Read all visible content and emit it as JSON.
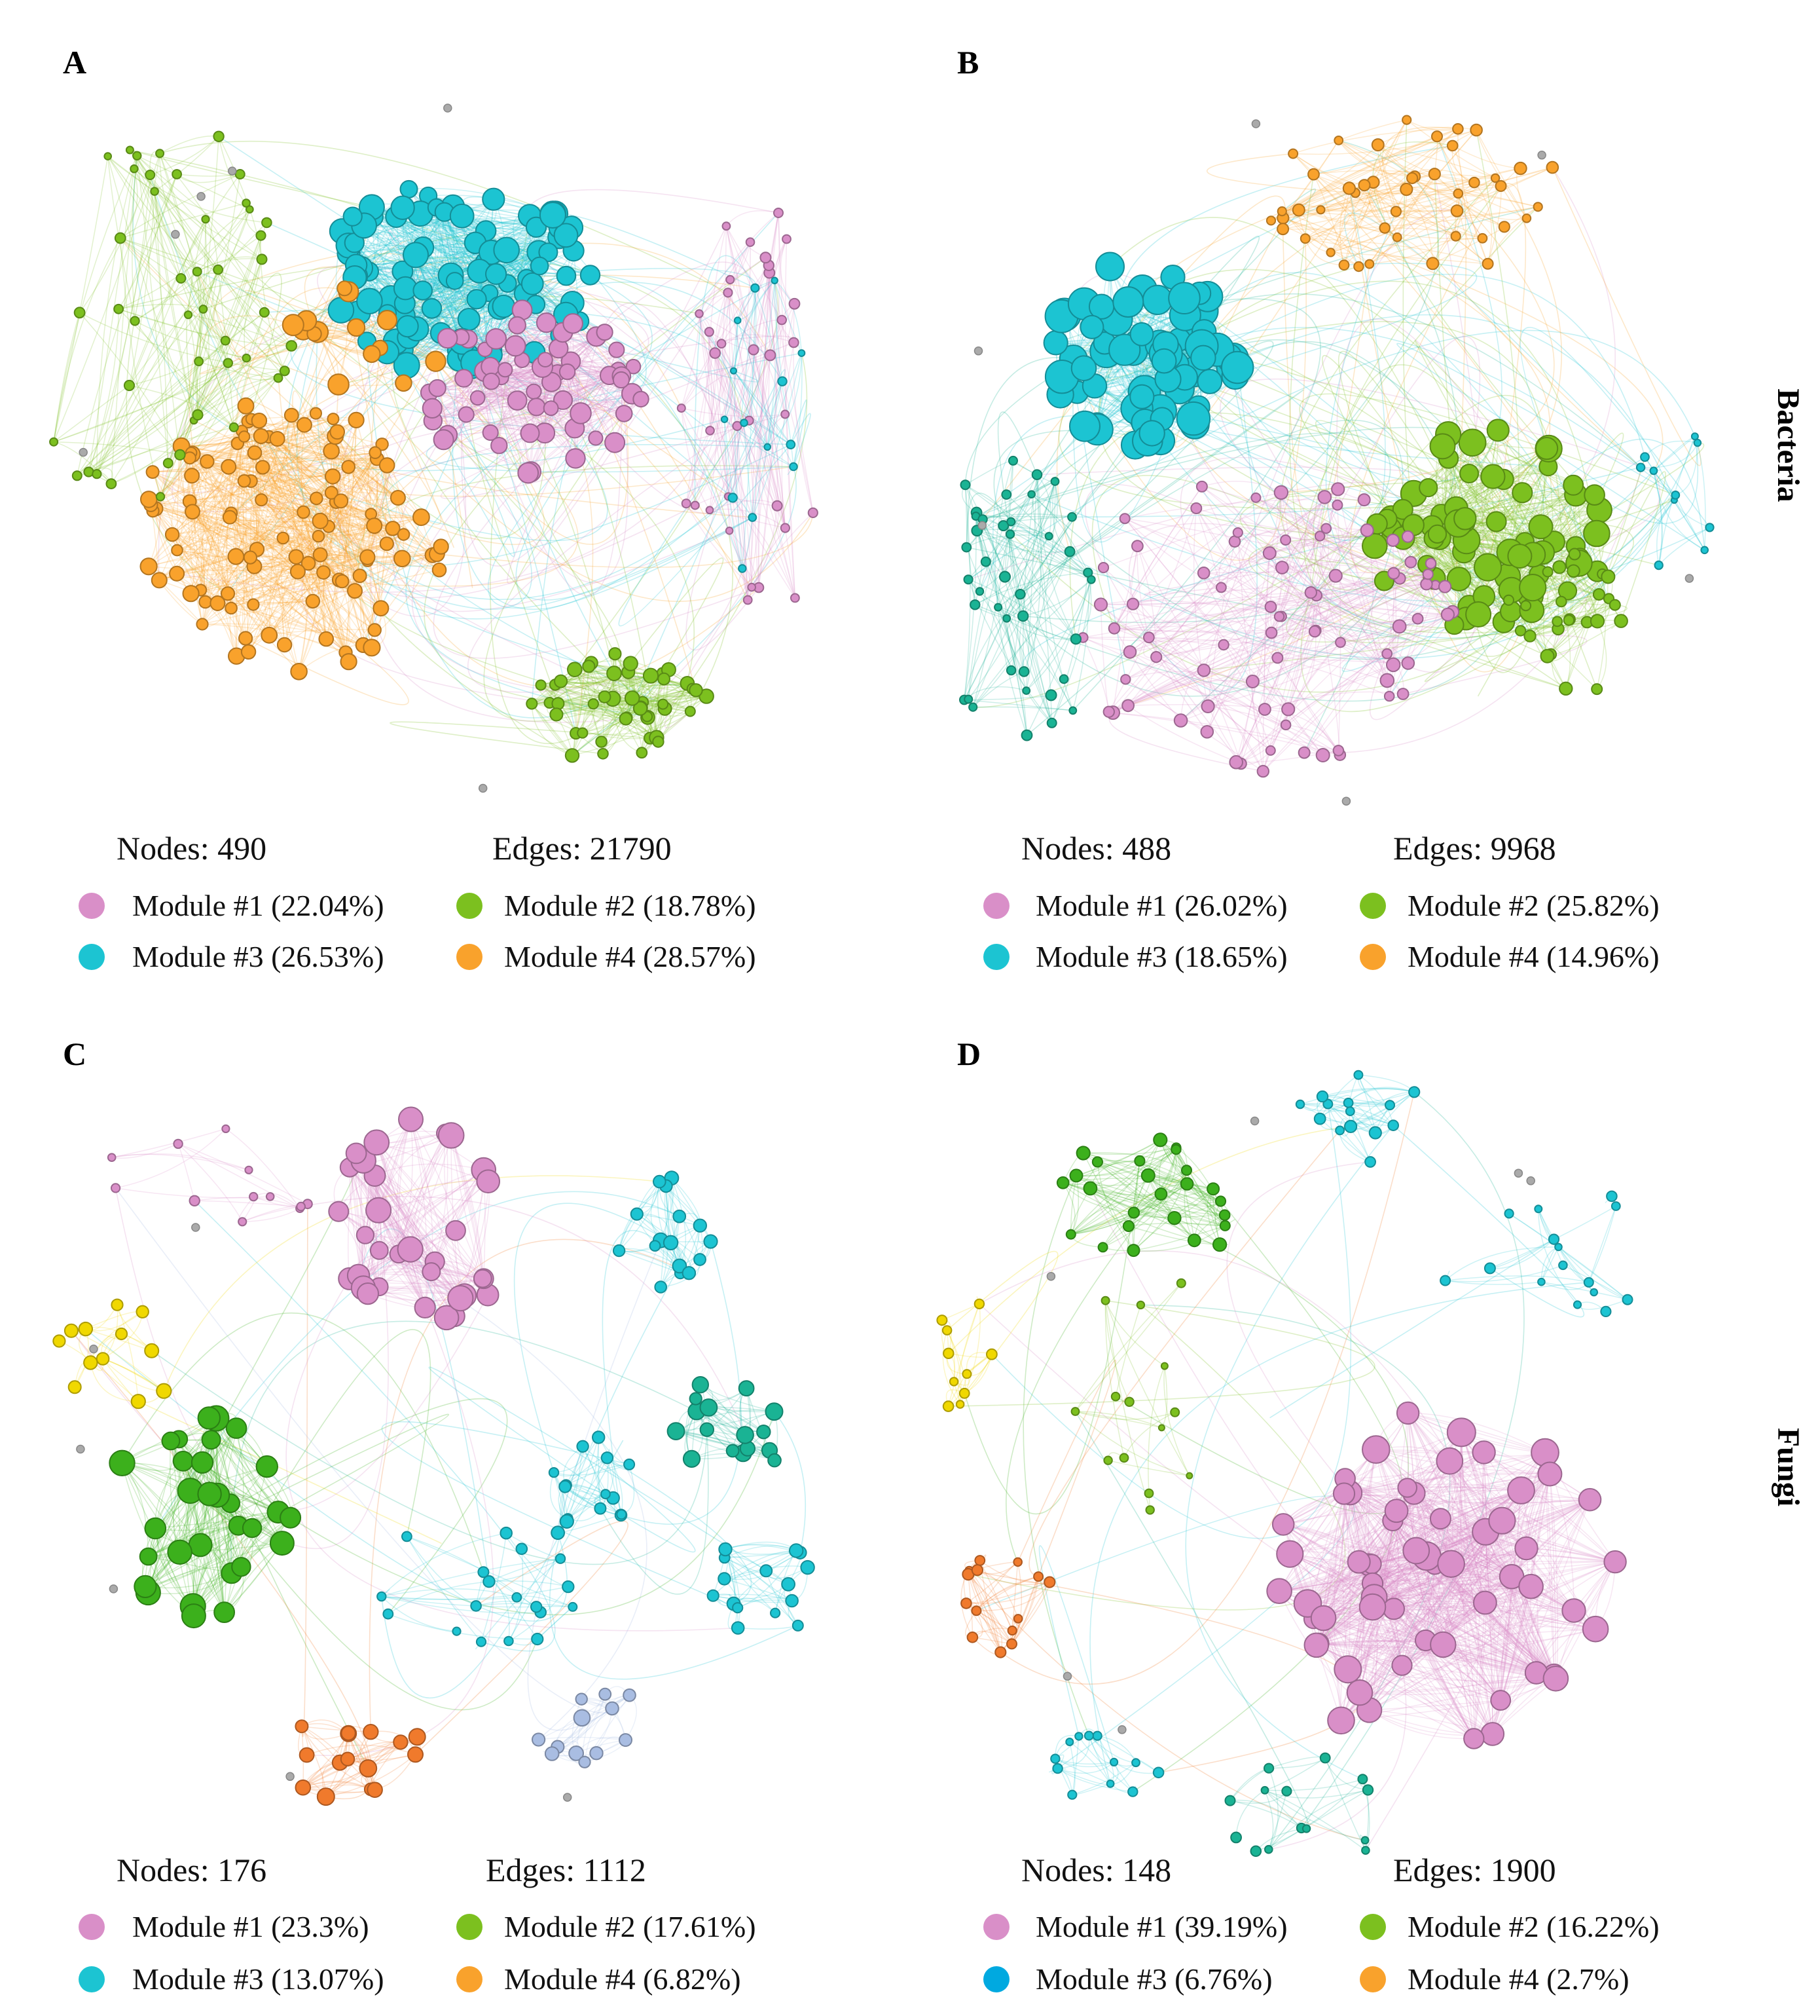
{
  "row_labels": {
    "top": "Bacteria",
    "bottom": "Fungi"
  },
  "colors": {
    "module1": "#d98fc8",
    "module2": "#7cc01f",
    "module3": "#1cc4d2",
    "module4": "#f9a22c",
    "module3_fungi_d": "#00a9e0",
    "teal": "#1ab394",
    "green_dark": "#3cb01c",
    "yellow": "#f0d800",
    "orange_red": "#f07a2c",
    "lavender": "#a9bde2",
    "grey": "#aaaaaa"
  },
  "panels": [
    {
      "letter": "A",
      "nodes_label": "Nodes: 490",
      "edges_label": "Edges: 21790",
      "legend": [
        {
          "label": "Module #1 (22.04%)",
          "color_key": "module1"
        },
        {
          "label": "Module #2 (18.78%)",
          "color_key": "module2"
        },
        {
          "label": "Module #3 (26.53%)",
          "color_key": "module3"
        },
        {
          "label": "Module #4 (28.57%)",
          "color_key": "module4"
        }
      ]
    },
    {
      "letter": "B",
      "nodes_label": "Nodes: 488",
      "edges_label": "Edges: 9968",
      "legend": [
        {
          "label": "Module #1 (26.02%)",
          "color_key": "module1"
        },
        {
          "label": "Module #2 (25.82%)",
          "color_key": "module2"
        },
        {
          "label": "Module #3 (18.65%)",
          "color_key": "module3"
        },
        {
          "label": "Module #4 (14.96%)",
          "color_key": "module4"
        }
      ]
    },
    {
      "letter": "C",
      "nodes_label": "Nodes: 176",
      "edges_label": "Edges: 1112",
      "legend": [
        {
          "label": "Module #1 (23.3%)",
          "color_key": "module1"
        },
        {
          "label": "Module #2 (17.61%)",
          "color_key": "module2"
        },
        {
          "label": "Module #3 (13.07%)",
          "color_key": "module3"
        },
        {
          "label": "Module #4 (6.82%)",
          "color_key": "module4"
        }
      ]
    },
    {
      "letter": "D",
      "nodes_label": "Nodes: 148",
      "edges_label": "Edges: 1900",
      "legend": [
        {
          "label": "Module #1 (39.19%)",
          "color_key": "module1"
        },
        {
          "label": "Module #2 (16.22%)",
          "color_key": "module2"
        },
        {
          "label": "Module #3 (6.76%)",
          "color_key": "module3_fungi_d"
        },
        {
          "label": "Module #4 (2.7%)",
          "color_key": "module4"
        }
      ]
    }
  ]
}
